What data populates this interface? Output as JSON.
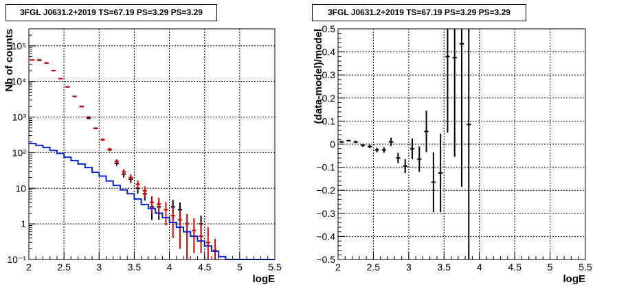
{
  "panels": [
    {
      "title": "3FGL J0631.2+2019 TS=67.19 PS=3.29 PS=3.29",
      "xlabel": "logE",
      "ylabel": "Nb of counts",
      "xticks": [
        "2",
        "2.5",
        "3",
        "3.5",
        "4",
        "4.5",
        "5",
        "5.5"
      ],
      "yticks": [
        "10⁻¹",
        "1",
        "10",
        "10²",
        "10³",
        "10⁴",
        "10⁵"
      ]
    },
    {
      "title": "3FGL J0631.2+2019 TS=67.19 PS=3.29 PS=3.29",
      "xlabel": "logE",
      "ylabel": "(data-model)/model",
      "xticks": [
        "2",
        "2.5",
        "3",
        "3.5",
        "4",
        "4.5",
        "5",
        "5.5"
      ],
      "yticks": [
        "−0.5",
        "−0.4",
        "−0.3",
        "−0.2",
        "−0.1",
        "0",
        "0.1",
        "0.2",
        "0.3",
        "0.4",
        "0.5"
      ]
    }
  ],
  "chart_data": [
    {
      "type": "line",
      "title": "3FGL J0631.2+2019 TS=67.19 PS=3.29 PS=3.29",
      "xlabel": "logE",
      "ylabel": "Nb of counts",
      "xlim": [
        2,
        5.5
      ],
      "ylim": [
        0.1,
        300000
      ],
      "yscale": "log",
      "grid": true,
      "bin_width": 0.1,
      "series": [
        {
          "color": "#000000",
          "style": "points-with-errors",
          "x": [
            2.05,
            2.15,
            2.25,
            2.35,
            2.45,
            2.55,
            2.65,
            2.75,
            2.85,
            2.95,
            3.05,
            3.15,
            3.25,
            3.35,
            3.45,
            3.55,
            3.65,
            3.75,
            3.85,
            3.95,
            4.05,
            4.15,
            4.25,
            4.35,
            4.45,
            4.55
          ],
          "y": [
            40000,
            40000,
            33000,
            20000,
            12000,
            7000,
            3800,
            2000,
            920,
            480,
            230,
            120,
            50,
            25,
            18,
            10,
            7,
            3,
            3,
            0,
            3,
            2.5,
            0,
            0,
            1,
            0
          ],
          "yerr_low": [
            200,
            200,
            180,
            140,
            110,
            80,
            60,
            45,
            30,
            22,
            15,
            11,
            7,
            5,
            4,
            3,
            2.5,
            1.7,
            1.7,
            0,
            1.7,
            1.5,
            0,
            0,
            0.7,
            0
          ],
          "yerr_high": [
            200,
            200,
            180,
            140,
            110,
            80,
            60,
            45,
            30,
            22,
            15,
            11,
            7,
            5,
            4,
            3,
            2.5,
            1.7,
            1.7,
            0,
            1.7,
            1.5,
            0,
            0,
            0.7,
            0
          ]
        },
        {
          "color": "#dd0000",
          "style": "points-with-errors",
          "x": [
            2.05,
            2.15,
            2.25,
            2.35,
            2.45,
            2.55,
            2.65,
            2.75,
            2.85,
            2.95,
            3.05,
            3.15,
            3.25,
            3.35,
            3.45,
            3.55,
            3.65,
            3.75,
            3.85,
            3.95,
            4.05,
            4.15,
            4.25,
            4.35,
            4.45,
            4.55,
            4.65
          ],
          "y": [
            40000,
            39000,
            33000,
            20000,
            12000,
            7100,
            3800,
            1950,
            1000,
            490,
            235,
            125,
            57,
            29,
            20,
            13,
            8.5,
            4,
            3.6,
            2.5,
            1.7,
            1.3,
            1.0,
            0.65,
            0.45,
            0.3,
            0.18
          ],
          "yerr_low": [
            200,
            198,
            182,
            141,
            110,
            84,
            62,
            44,
            32,
            22,
            15,
            11,
            7.5,
            5.4,
            4.5,
            3.6,
            2.9,
            2.0,
            1.9,
            1.6,
            1.3,
            1.1,
            0.9,
            0.5,
            0.3,
            0.2,
            0.1
          ],
          "yerr_high": [
            200,
            198,
            182,
            141,
            110,
            84,
            62,
            44,
            32,
            22,
            15,
            11,
            7.5,
            5.4,
            4.5,
            3.6,
            2.9,
            2.0,
            1.9,
            1.6,
            1.3,
            1.1,
            0.9,
            0.8,
            0.7,
            0.5,
            0.2
          ]
        },
        {
          "color": "#0022dd",
          "style": "histogram",
          "x": [
            2.05,
            2.15,
            2.25,
            2.35,
            2.45,
            2.55,
            2.65,
            2.75,
            2.85,
            2.95,
            3.05,
            3.15,
            3.25,
            3.35,
            3.45,
            3.55,
            3.65,
            3.75,
            3.85,
            3.95,
            4.05,
            4.15,
            4.25,
            4.35,
            4.45,
            4.55,
            4.65,
            4.75,
            4.85,
            4.95,
            5.05,
            5.15,
            5.25,
            5.35,
            5.45
          ],
          "y": [
            180,
            160,
            140,
            115,
            95,
            75,
            60,
            48,
            38,
            28,
            22,
            16,
            12,
            9,
            7,
            5,
            3.5,
            2.7,
            2.0,
            1.5,
            1.1,
            0.8,
            0.6,
            0.45,
            0.33,
            0.24,
            0.17,
            0.12,
            0.1,
            0.1,
            0.1,
            0.1,
            0.1,
            0.1,
            0.1
          ]
        }
      ]
    },
    {
      "type": "scatter",
      "title": "3FGL J0631.2+2019 TS=67.19 PS=3.29 PS=3.29",
      "xlabel": "logE",
      "ylabel": "(data-model)/model",
      "xlim": [
        2,
        5.5
      ],
      "ylim": [
        -0.5,
        0.5
      ],
      "grid": true,
      "bin_width": 0.1,
      "series": [
        {
          "color": "#000000",
          "style": "points-with-errors",
          "x": [
            2.05,
            2.15,
            2.25,
            2.35,
            2.45,
            2.55,
            2.65,
            2.75,
            2.85,
            2.95,
            3.05,
            3.15,
            3.25,
            3.35,
            3.45,
            3.55,
            3.65,
            3.75,
            3.85
          ],
          "y": [
            0.01,
            0.015,
            0.01,
            -0.005,
            -0.01,
            -0.025,
            -0.025,
            0.01,
            -0.06,
            -0.095,
            -0.02,
            -0.065,
            0.055,
            -0.165,
            -0.125,
            0.38,
            0.375,
            0.435,
            0.085
          ],
          "yerr": [
            0.004,
            0.004,
            0.005,
            0.006,
            0.008,
            0.01,
            0.012,
            0.018,
            0.022,
            0.03,
            0.045,
            0.055,
            0.09,
            0.13,
            0.17,
            0.33,
            0.43,
            0.62,
            0.8
          ]
        }
      ]
    }
  ]
}
